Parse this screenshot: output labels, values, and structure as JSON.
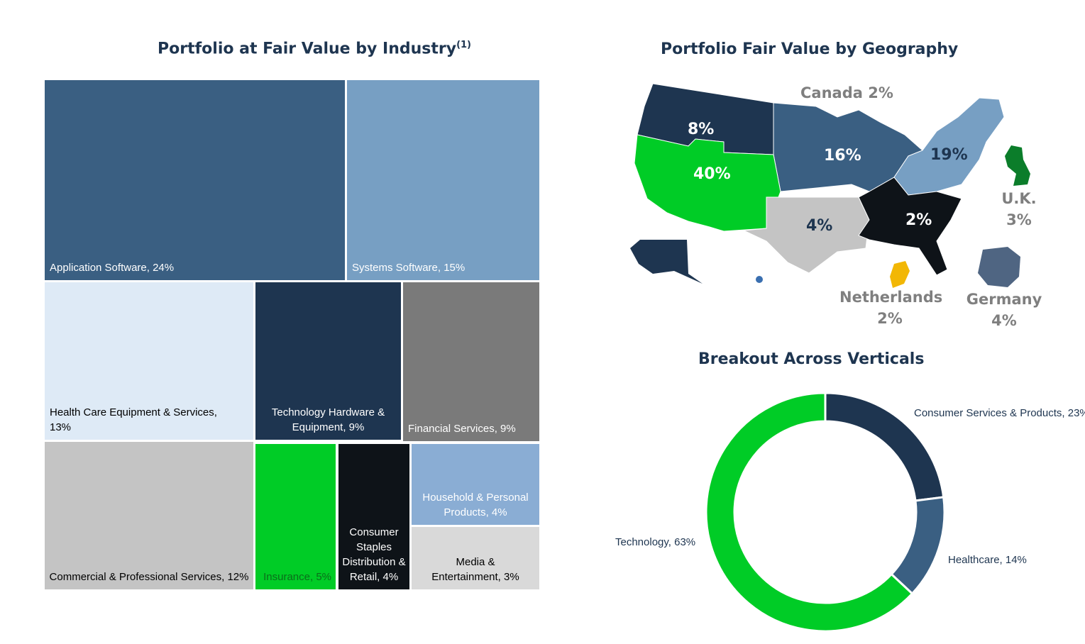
{
  "industry_title": "Portfolio at Fair Value by Industry",
  "industry_title_sup": "(1)",
  "geo_title": "Portfolio Fair Value by Geography",
  "verticals_title": "Breakout Across Verticals",
  "geo_labels": {
    "canada": "Canada 2%",
    "west": "40%",
    "northwest": "8%",
    "midwest": "16%",
    "northeast": "19%",
    "south_central": "4%",
    "southeast": "2%",
    "uk_name": "U.K.",
    "uk_pct": "3%",
    "netherlands_name": "Netherlands",
    "netherlands_pct": "2%",
    "germany_name": "Germany",
    "germany_pct": "4%"
  },
  "colors": {
    "dark_blue": "#1e3550",
    "mid_blue": "#3a5f82",
    "light_blue": "#779fc3",
    "pale_blue": "#deeaf6",
    "green": "#00cc26",
    "black": "#0e1318",
    "gray": "#7a7a7a",
    "light_gray": "#c4c4c4",
    "periwinkle": "#8aadd4",
    "pale_gray": "#d9d9d9",
    "uk_green": "#0b7d2a",
    "gold": "#f2b705",
    "germany": "#4f6582",
    "label_gray": "#7f7f7f"
  },
  "chart_data": [
    {
      "type": "treemap",
      "title": "Portfolio at Fair Value by Industry",
      "categories": [
        "Application Software, 24%",
        "Systems Software, 15%",
        "Health Care Equipment & Services, 13%",
        "Technology Hardware & Equipment, 9%",
        "Financial Services, 9%",
        "Commercial & Professional Services, 12%",
        "Insurance, 5%",
        "Consumer Staples Distribution & Retail, 4%",
        "Household & Personal Products, 4%",
        "Media & Entertainment, 3%"
      ],
      "values": [
        24,
        15,
        13,
        9,
        9,
        12,
        5,
        4,
        4,
        3
      ]
    },
    {
      "type": "pie",
      "title": "Breakout Across Verticals",
      "categories": [
        "Consumer Services & Products",
        "Healthcare",
        "Technology"
      ],
      "values": [
        23,
        14,
        63
      ],
      "labels": [
        "Consumer Services & Products, 23%",
        "Healthcare, 14%",
        "Technology, 63%"
      ],
      "colors": [
        "#1e3550",
        "#3a5f82",
        "#00cc26"
      ]
    }
  ]
}
